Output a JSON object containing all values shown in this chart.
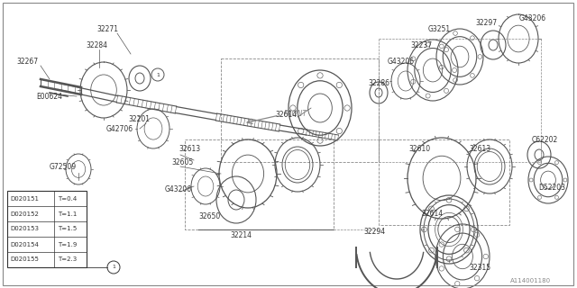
{
  "bg_color": "#ffffff",
  "line_color": "#555555",
  "dark_color": "#333333",
  "gray_color": "#888888",
  "table_data": [
    [
      "D020151",
      "T=0.4"
    ],
    [
      "D020152",
      "T=1.1"
    ],
    [
      "D020153",
      "T=1.5"
    ],
    [
      "D020154",
      "T=1.9"
    ],
    [
      "D020155",
      "T=2.3"
    ]
  ],
  "figsize": [
    6.4,
    3.2
  ],
  "dpi": 100
}
